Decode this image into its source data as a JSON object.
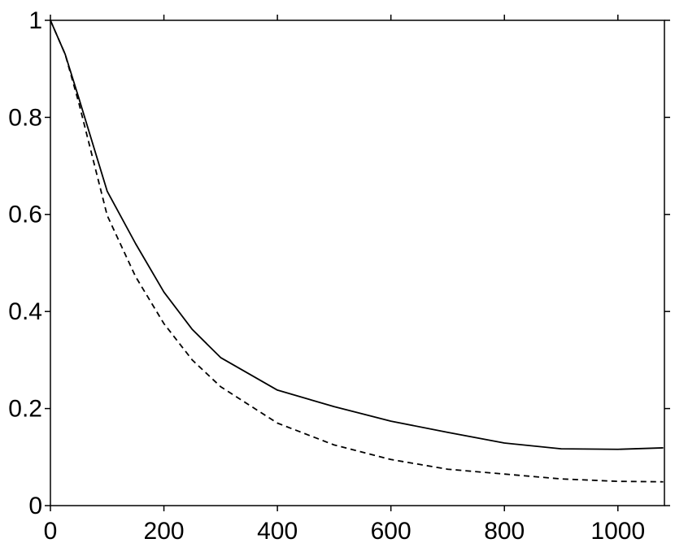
{
  "chart_data": {
    "type": "line",
    "x": [
      0,
      26,
      50,
      100,
      150,
      200,
      250,
      300,
      400,
      500,
      600,
      700,
      800,
      900,
      1000,
      1080
    ],
    "series": [
      {
        "color": "#000000",
        "linestyle": "solid",
        "values": [
          1.0,
          0.93,
          0.84,
          0.648,
          0.54,
          0.44,
          0.363,
          0.305,
          0.238,
          0.204,
          0.174,
          0.151,
          0.129,
          0.117,
          0.116,
          0.119
        ]
      },
      {
        "color": "#000000",
        "linestyle": "dashed",
        "values": [
          1.0,
          0.93,
          0.83,
          0.598,
          0.472,
          0.375,
          0.3,
          0.245,
          0.17,
          0.125,
          0.095,
          0.075,
          0.065,
          0.055,
          0.05,
          0.049
        ]
      }
    ],
    "xlim": [
      0,
      1082
    ],
    "xticks": [
      0,
      200,
      400,
      600,
      800,
      1000
    ],
    "ylim": [
      0,
      1
    ],
    "yticks": [
      0,
      0.2,
      0.4,
      0.6,
      0.8,
      1
    ],
    "grid": false
  }
}
